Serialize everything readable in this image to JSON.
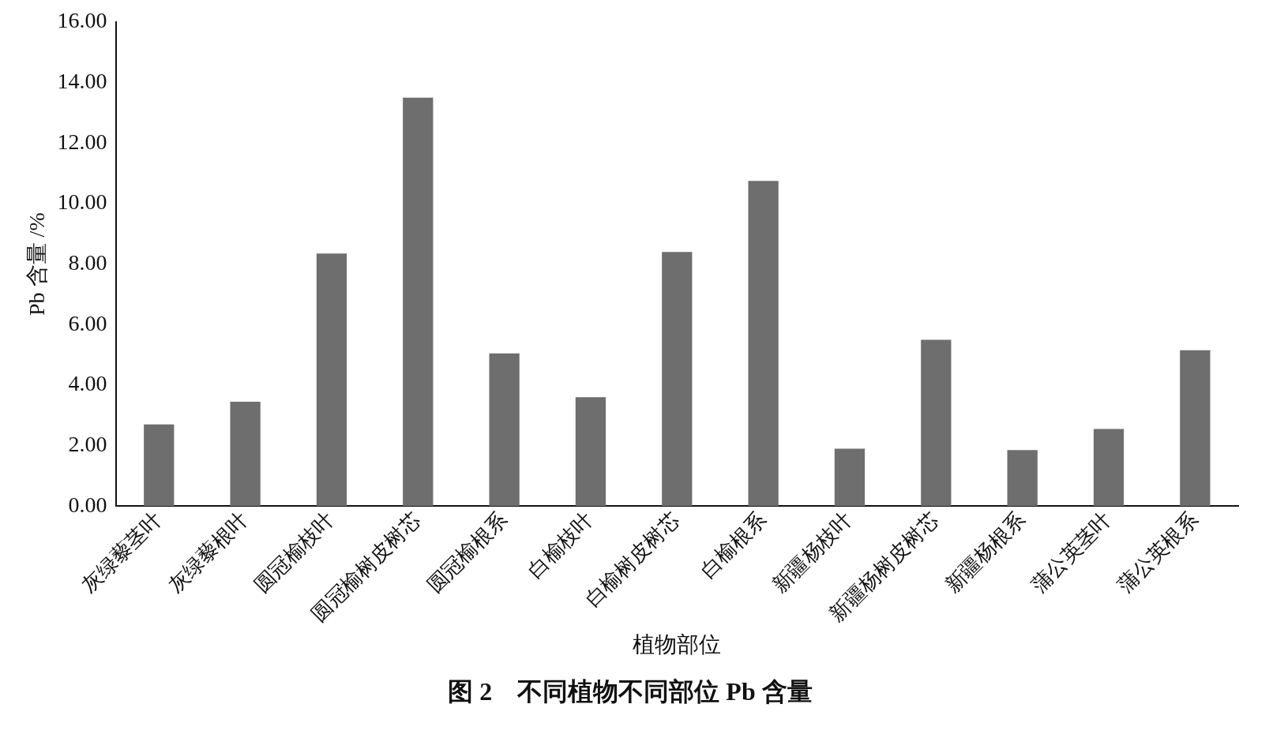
{
  "chart_data": {
    "type": "bar",
    "title": "图 2　不同植物不同部位 Pb 含量",
    "xlabel": "植物部位",
    "ylabel": "Pb 含量 /%",
    "categories": [
      "灰绿藜茎叶",
      "灰绿藜根叶",
      "圆冠榆枝叶",
      "圆冠榆树皮树芯",
      "圆冠榆根系",
      "白榆枝叶",
      "白榆树皮树芯",
      "白榆根系",
      "新疆杨枝叶",
      "新疆杨树皮树芯",
      "新疆杨根系",
      "蒲公英茎叶",
      "蒲公英根系"
    ],
    "series": [
      {
        "color": "#6e6e6e",
        "values": [
          2.7,
          3.45,
          8.35,
          13.5,
          5.05,
          3.6,
          8.4,
          10.75,
          1.9,
          5.5,
          1.85,
          2.55,
          5.15
        ]
      }
    ],
    "ylim": [
      0,
      16
    ],
    "yticks": [
      {
        "value": 0,
        "label": "0.00"
      },
      {
        "value": 2,
        "label": "2.00"
      },
      {
        "value": 4,
        "label": "4.00"
      },
      {
        "value": 6,
        "label": "6.00"
      },
      {
        "value": 8,
        "label": "8.00"
      },
      {
        "value": 10,
        "label": "10.00"
      },
      {
        "value": 12,
        "label": "12.00"
      },
      {
        "value": 14,
        "label": "14.00"
      },
      {
        "value": 16,
        "label": "16.00"
      }
    ],
    "grid": false,
    "legend": false
  }
}
